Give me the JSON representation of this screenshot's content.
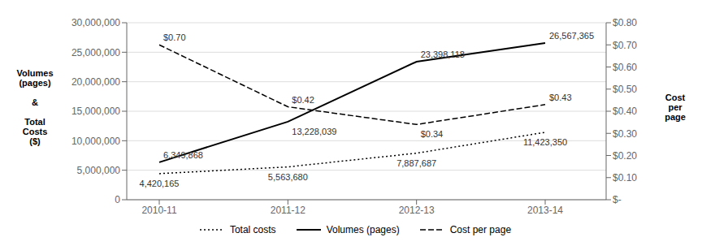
{
  "chart_data": {
    "type": "line",
    "categories": [
      "2010-11",
      "2011-12",
      "2012-13",
      "2013-14"
    ],
    "y_label": "Volumes\n(pages)\n\n&\n\nTotal\nCosts\n($)",
    "y2_label": "Cost\nper\npage",
    "series": [
      {
        "name": "Total costs",
        "color": "#000000",
        "line_style": "dotted",
        "values": [
          4420165,
          5563680,
          7887687,
          11423350
        ],
        "value_labels": [
          "4,420,165",
          "5,563,680",
          "7,887,687",
          "11,423,350"
        ]
      },
      {
        "name": "Volumes (pages)",
        "color": "#000000",
        "line_style": "solid",
        "values": [
          6349868,
          13228039,
          23398118,
          26567365
        ],
        "value_labels": [
          "6,349,868",
          "13,228,039",
          "23,398,118",
          "26,567,365"
        ]
      },
      {
        "name": "Cost per page",
        "color": "#000000",
        "line_style": "dashed",
        "axis": "y2",
        "values": [
          0.7,
          0.42,
          0.34,
          0.43
        ],
        "value_labels": [
          "$0.70",
          "$0.42",
          "$0.34",
          "$0.43"
        ]
      }
    ],
    "ylim": [
      0,
      30000000
    ],
    "yticks": [
      0,
      {
        "value": 5000000,
        "label": "5,000,000"
      },
      {
        "value": 10000000,
        "label": "10,000,000"
      },
      {
        "value": 15000000,
        "label": "15,000,000"
      },
      {
        "value": 20000000,
        "label": "20,000,000"
      },
      {
        "value": 25000000,
        "label": "25,000,000"
      },
      {
        "value": 30000000,
        "label": "30,000,000"
      }
    ],
    "y2lim": [
      0,
      0.8
    ],
    "y2ticks": [
      {
        "value": 0.0,
        "label": "$-"
      },
      {
        "value": 0.1,
        "label": "$0.10"
      },
      {
        "value": 0.2,
        "label": "$0.20"
      },
      {
        "value": 0.3,
        "label": "$0.30"
      },
      {
        "value": 0.4,
        "label": "$0.40"
      },
      {
        "value": 0.5,
        "label": "$0.50"
      },
      {
        "value": 0.6,
        "label": "$0.60"
      },
      {
        "value": 0.7,
        "label": "$0.70"
      },
      {
        "value": 0.8,
        "label": "$0.80"
      }
    ],
    "grid": true,
    "legend": "bottom",
    "data_labels": true
  }
}
